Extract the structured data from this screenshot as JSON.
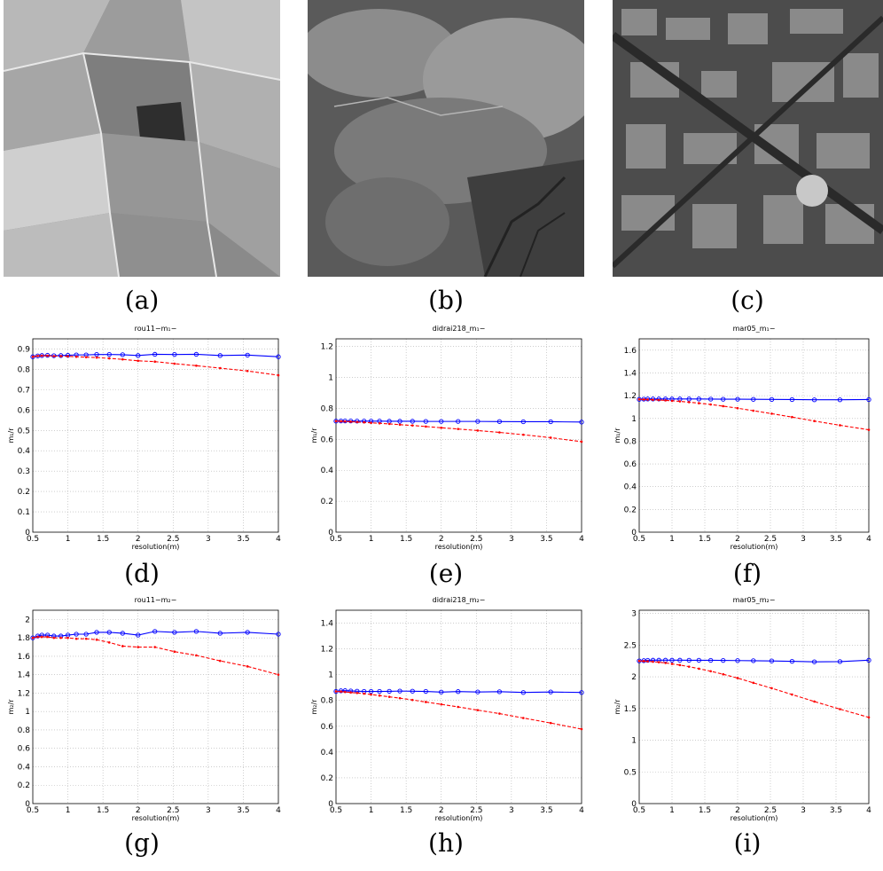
{
  "captions": [
    "(a)",
    "(b)",
    "(c)",
    "(d)",
    "(e)",
    "(f)",
    "(g)",
    "(h)",
    "(i)"
  ],
  "photos": [
    {
      "name": "aerial-image-a",
      "subject": "farmland fields aerial photo"
    },
    {
      "name": "aerial-image-b",
      "subject": "forested mountain terrain aerial photo"
    },
    {
      "name": "aerial-image-c",
      "subject": "dense urban area aerial photo"
    }
  ],
  "colors": {
    "series_1": "#0000ff",
    "series_2": "#ff0000",
    "grid": "#b0b0b0"
  },
  "chart_data": [
    {
      "type": "line",
      "title": "rou11−m₁−",
      "xlabel": "resolution(m)",
      "ylabel": "m₁/r",
      "xlim": [
        0.5,
        4
      ],
      "ylim": [
        0,
        0.95
      ],
      "xticks": [
        "0.5",
        "1",
        "1.5",
        "2",
        "2.5",
        "3",
        "3.5",
        "4"
      ],
      "yticks": [
        "0",
        "0.1",
        "0.2",
        "0.3",
        "0.4",
        "0.5",
        "0.6",
        "0.7",
        "0.8",
        "0.9"
      ],
      "grid": true,
      "series": [
        {
          "style": "solid-circle",
          "x": [
            0.5,
            0.57,
            0.63,
            0.71,
            0.8,
            0.9,
            1.0,
            1.12,
            1.26,
            1.41,
            1.59,
            1.78,
            2.0,
            2.24,
            2.52,
            2.83,
            3.17,
            3.56,
            4.0
          ],
          "y": [
            0.862,
            0.866,
            0.868,
            0.869,
            0.867,
            0.868,
            0.869,
            0.871,
            0.871,
            0.873,
            0.873,
            0.872,
            0.868,
            0.874,
            0.873,
            0.874,
            0.868,
            0.87,
            0.862
          ]
        },
        {
          "style": "dashed-star",
          "x": [
            0.5,
            0.57,
            0.63,
            0.71,
            0.8,
            0.9,
            1.0,
            1.12,
            1.26,
            1.41,
            1.59,
            1.78,
            2.0,
            2.24,
            2.52,
            2.83,
            3.17,
            3.56,
            4.0
          ],
          "y": [
            0.862,
            0.866,
            0.867,
            0.867,
            0.865,
            0.865,
            0.864,
            0.862,
            0.86,
            0.858,
            0.854,
            0.849,
            0.842,
            0.838,
            0.828,
            0.818,
            0.806,
            0.792,
            0.771
          ]
        }
      ]
    },
    {
      "type": "line",
      "title": "didrai218_m₁−",
      "xlabel": "resolution(m)",
      "ylabel": "m₁/r",
      "xlim": [
        0.5,
        4
      ],
      "ylim": [
        0,
        1.25
      ],
      "xticks": [
        "0.5",
        "1",
        "1.5",
        "2",
        "2.5",
        "3",
        "3.5",
        "4"
      ],
      "yticks": [
        "0",
        "0.2",
        "0.4",
        "0.6",
        "0.8",
        "1",
        "1.2"
      ],
      "grid": true,
      "series": [
        {
          "style": "solid-circle",
          "x": [
            0.5,
            0.57,
            0.63,
            0.71,
            0.8,
            0.9,
            1.0,
            1.12,
            1.26,
            1.41,
            1.59,
            1.78,
            2.0,
            2.24,
            2.52,
            2.83,
            3.17,
            3.56,
            4.0
          ],
          "y": [
            0.718,
            0.719,
            0.719,
            0.719,
            0.718,
            0.718,
            0.718,
            0.718,
            0.717,
            0.717,
            0.717,
            0.716,
            0.716,
            0.716,
            0.716,
            0.715,
            0.714,
            0.714,
            0.712
          ]
        },
        {
          "style": "dashed-star",
          "x": [
            0.5,
            0.57,
            0.63,
            0.71,
            0.8,
            0.9,
            1.0,
            1.12,
            1.26,
            1.41,
            1.59,
            1.78,
            2.0,
            2.24,
            2.52,
            2.83,
            3.17,
            3.56,
            4.0
          ],
          "y": [
            0.718,
            0.717,
            0.716,
            0.714,
            0.712,
            0.71,
            0.707,
            0.704,
            0.7,
            0.695,
            0.69,
            0.683,
            0.675,
            0.667,
            0.657,
            0.645,
            0.63,
            0.611,
            0.585
          ]
        }
      ]
    },
    {
      "type": "line",
      "title": "mar05_m₁−",
      "xlabel": "resolution(m)",
      "ylabel": "m₁/r",
      "xlim": [
        0.5,
        4
      ],
      "ylim": [
        0,
        1.7
      ],
      "xticks": [
        "0.5",
        "1",
        "1.5",
        "2",
        "2.5",
        "3",
        "3.5",
        "4"
      ],
      "yticks": [
        "0",
        "0.2",
        "0.4",
        "0.6",
        "0.8",
        "1",
        "1.2",
        "1.4",
        "1.6"
      ],
      "grid": true,
      "series": [
        {
          "style": "solid-circle",
          "x": [
            0.5,
            0.57,
            0.63,
            0.71,
            0.8,
            0.9,
            1.0,
            1.12,
            1.26,
            1.41,
            1.59,
            1.78,
            2.0,
            2.24,
            2.52,
            2.83,
            3.17,
            3.56,
            4.0
          ],
          "y": [
            1.168,
            1.17,
            1.171,
            1.171,
            1.171,
            1.171,
            1.171,
            1.171,
            1.171,
            1.171,
            1.17,
            1.169,
            1.169,
            1.168,
            1.167,
            1.166,
            1.164,
            1.164,
            1.166
          ]
        },
        {
          "style": "dashed-star",
          "x": [
            0.5,
            0.57,
            0.63,
            0.71,
            0.8,
            0.9,
            1.0,
            1.12,
            1.26,
            1.41,
            1.59,
            1.78,
            2.0,
            2.24,
            2.52,
            2.83,
            3.17,
            3.56,
            4.0
          ],
          "y": [
            1.168,
            1.167,
            1.166,
            1.164,
            1.162,
            1.159,
            1.155,
            1.15,
            1.143,
            1.134,
            1.123,
            1.108,
            1.09,
            1.068,
            1.042,
            1.012,
            0.977,
            0.94,
            0.9
          ]
        }
      ]
    },
    {
      "type": "line",
      "title": "rou11−m₂−",
      "xlabel": "resolution(m)",
      "ylabel": "m₂/r",
      "xlim": [
        0.5,
        4
      ],
      "ylim": [
        0,
        2.1
      ],
      "xticks": [
        "0.5",
        "1",
        "1.5",
        "2",
        "2.5",
        "3",
        "3.5",
        "4"
      ],
      "yticks": [
        "0",
        "0.2",
        "0.4",
        "0.6",
        "0.8",
        "1",
        "1.2",
        "1.4",
        "1.6",
        "1.8",
        "2"
      ],
      "grid": true,
      "series": [
        {
          "style": "solid-circle",
          "x": [
            0.5,
            0.57,
            0.63,
            0.71,
            0.8,
            0.9,
            1.0,
            1.12,
            1.26,
            1.41,
            1.59,
            1.78,
            2.0,
            2.24,
            2.52,
            2.83,
            3.17,
            3.56,
            4.0
          ],
          "y": [
            1.8,
            1.82,
            1.83,
            1.83,
            1.82,
            1.82,
            1.83,
            1.84,
            1.84,
            1.86,
            1.86,
            1.85,
            1.83,
            1.87,
            1.86,
            1.87,
            1.85,
            1.86,
            1.84
          ]
        },
        {
          "style": "dashed-star",
          "x": [
            0.5,
            0.57,
            0.63,
            0.71,
            0.8,
            0.9,
            1.0,
            1.12,
            1.26,
            1.41,
            1.59,
            1.78,
            2.0,
            2.24,
            2.52,
            2.83,
            3.17,
            3.56,
            4.0
          ],
          "y": [
            1.8,
            1.81,
            1.81,
            1.81,
            1.8,
            1.8,
            1.8,
            1.79,
            1.79,
            1.78,
            1.75,
            1.71,
            1.7,
            1.7,
            1.65,
            1.61,
            1.55,
            1.49,
            1.4
          ]
        }
      ]
    },
    {
      "type": "line",
      "title": "didrai218_m₂−",
      "xlabel": "resolution(m)",
      "ylabel": "m₂/r",
      "xlim": [
        0.5,
        4
      ],
      "ylim": [
        0,
        1.5
      ],
      "xticks": [
        "0.5",
        "1",
        "1.5",
        "2",
        "2.5",
        "3",
        "3.5",
        "4"
      ],
      "yticks": [
        "0",
        "0.2",
        "0.4",
        "0.6",
        "0.8",
        "1",
        "1.2",
        "1.4"
      ],
      "grid": true,
      "series": [
        {
          "style": "solid-circle",
          "x": [
            0.5,
            0.57,
            0.63,
            0.71,
            0.8,
            0.9,
            1.0,
            1.12,
            1.26,
            1.41,
            1.59,
            1.78,
            2.0,
            2.24,
            2.52,
            2.83,
            3.17,
            3.56,
            4.0
          ],
          "y": [
            0.87,
            0.875,
            0.876,
            0.874,
            0.872,
            0.87,
            0.87,
            0.87,
            0.871,
            0.873,
            0.872,
            0.87,
            0.865,
            0.869,
            0.866,
            0.868,
            0.862,
            0.866,
            0.862
          ]
        },
        {
          "style": "dashed-star",
          "x": [
            0.5,
            0.57,
            0.63,
            0.71,
            0.8,
            0.9,
            1.0,
            1.12,
            1.26,
            1.41,
            1.59,
            1.78,
            2.0,
            2.24,
            2.52,
            2.83,
            3.17,
            3.56,
            4.0
          ],
          "y": [
            0.87,
            0.869,
            0.866,
            0.862,
            0.858,
            0.853,
            0.846,
            0.838,
            0.828,
            0.818,
            0.804,
            0.788,
            0.77,
            0.75,
            0.725,
            0.698,
            0.664,
            0.625,
            0.578
          ]
        }
      ]
    },
    {
      "type": "line",
      "title": "mar05_m₂−",
      "xlabel": "resolution(m)",
      "ylabel": "m₂/r",
      "xlim": [
        0.5,
        4
      ],
      "ylim": [
        0,
        3.05
      ],
      "xticks": [
        "0.5",
        "1",
        "1.5",
        "2",
        "2.5",
        "3",
        "3.5",
        "4"
      ],
      "yticks": [
        "0",
        "0.5",
        "1",
        "1.5",
        "2",
        "2.5",
        "3"
      ],
      "grid": true,
      "series": [
        {
          "style": "solid-circle",
          "x": [
            0.5,
            0.57,
            0.63,
            0.71,
            0.8,
            0.9,
            1.0,
            1.12,
            1.26,
            1.41,
            1.59,
            1.78,
            2.0,
            2.24,
            2.52,
            2.83,
            3.17,
            3.56,
            4.0
          ],
          "y": [
            2.25,
            2.255,
            2.26,
            2.262,
            2.262,
            2.262,
            2.262,
            2.262,
            2.261,
            2.261,
            2.26,
            2.258,
            2.256,
            2.254,
            2.25,
            2.244,
            2.236,
            2.24,
            2.262
          ]
        },
        {
          "style": "dashed-star",
          "x": [
            0.5,
            0.57,
            0.63,
            0.71,
            0.8,
            0.9,
            1.0,
            1.12,
            1.26,
            1.41,
            1.59,
            1.78,
            2.0,
            2.24,
            2.52,
            2.83,
            3.17,
            3.56,
            4.0
          ],
          "y": [
            2.25,
            2.248,
            2.244,
            2.238,
            2.23,
            2.219,
            2.204,
            2.185,
            2.16,
            2.128,
            2.088,
            2.04,
            1.98,
            1.905,
            1.82,
            1.72,
            1.61,
            1.49,
            1.36
          ]
        }
      ]
    }
  ]
}
